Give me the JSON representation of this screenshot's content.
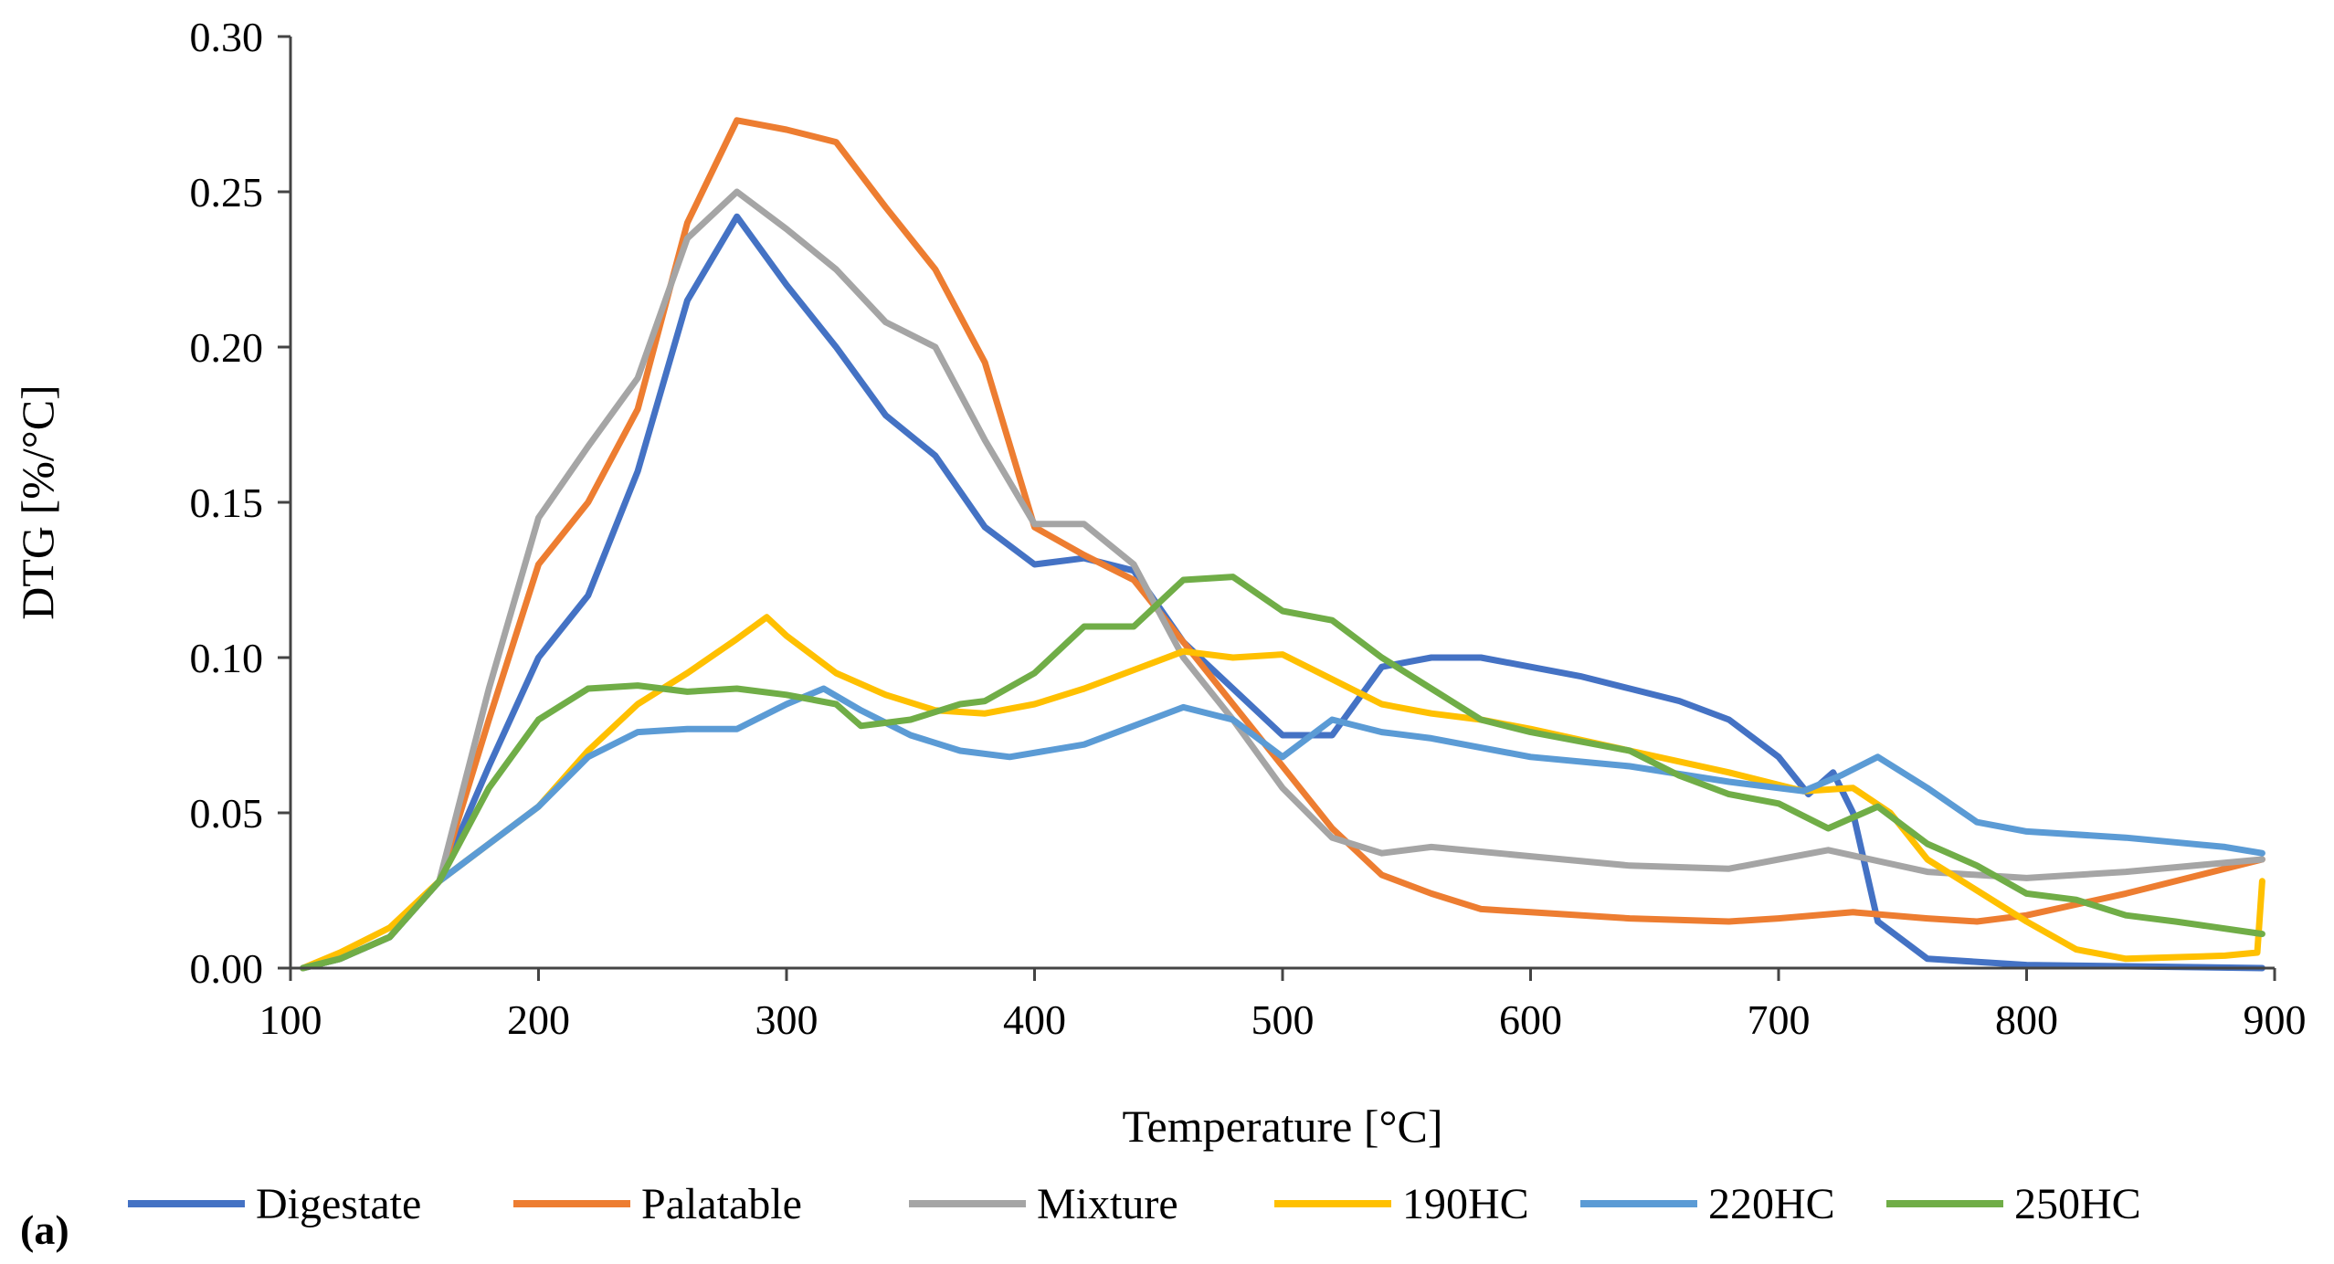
{
  "panel_label": "(a)",
  "chart_data": {
    "type": "line",
    "title": "",
    "xlabel": "Temperature [°C]",
    "ylabel": "DTG [%/°C]",
    "xlim": [
      100,
      900
    ],
    "ylim": [
      0,
      0.3
    ],
    "x_ticks": [
      100,
      200,
      300,
      400,
      500,
      600,
      700,
      800,
      900
    ],
    "y_ticks": [
      0.0,
      0.05,
      0.1,
      0.15,
      0.2,
      0.25,
      0.3
    ],
    "x_tick_labels": [
      "100",
      "200",
      "300",
      "400",
      "500",
      "600",
      "700",
      "800",
      "900"
    ],
    "y_tick_labels": [
      "0.00",
      "0.05",
      "0.10",
      "0.15",
      "0.20",
      "0.25",
      "0.30"
    ],
    "grid": false,
    "legend_position": "bottom",
    "series": [
      {
        "name": "Digestate",
        "color": "#4472c4",
        "points": [
          [
            105,
            0
          ],
          [
            120,
            0.003
          ],
          [
            140,
            0.01
          ],
          [
            160,
            0.028
          ],
          [
            180,
            0.065
          ],
          [
            200,
            0.1
          ],
          [
            220,
            0.12
          ],
          [
            240,
            0.16
          ],
          [
            260,
            0.215
          ],
          [
            280,
            0.242
          ],
          [
            300,
            0.22
          ],
          [
            320,
            0.2
          ],
          [
            340,
            0.178
          ],
          [
            360,
            0.165
          ],
          [
            380,
            0.142
          ],
          [
            400,
            0.13
          ],
          [
            420,
            0.132
          ],
          [
            440,
            0.128
          ],
          [
            460,
            0.105
          ],
          [
            480,
            0.09
          ],
          [
            500,
            0.075
          ],
          [
            520,
            0.075
          ],
          [
            540,
            0.097
          ],
          [
            560,
            0.1
          ],
          [
            580,
            0.1
          ],
          [
            600,
            0.097
          ],
          [
            620,
            0.094
          ],
          [
            640,
            0.09
          ],
          [
            660,
            0.086
          ],
          [
            680,
            0.08
          ],
          [
            700,
            0.068
          ],
          [
            712,
            0.056
          ],
          [
            722,
            0.063
          ],
          [
            730,
            0.05
          ],
          [
            740,
            0.015
          ],
          [
            760,
            0.003
          ],
          [
            800,
            0.001
          ],
          [
            895,
            0
          ]
        ]
      },
      {
        "name": "Palatable",
        "color": "#ed7d31",
        "points": [
          [
            105,
            0
          ],
          [
            120,
            0.003
          ],
          [
            140,
            0.01
          ],
          [
            160,
            0.028
          ],
          [
            180,
            0.08
          ],
          [
            200,
            0.13
          ],
          [
            220,
            0.15
          ],
          [
            240,
            0.18
          ],
          [
            260,
            0.24
          ],
          [
            280,
            0.273
          ],
          [
            300,
            0.27
          ],
          [
            320,
            0.266
          ],
          [
            340,
            0.245
          ],
          [
            360,
            0.225
          ],
          [
            380,
            0.195
          ],
          [
            400,
            0.142
          ],
          [
            420,
            0.133
          ],
          [
            440,
            0.125
          ],
          [
            460,
            0.105
          ],
          [
            480,
            0.085
          ],
          [
            500,
            0.065
          ],
          [
            520,
            0.045
          ],
          [
            540,
            0.03
          ],
          [
            560,
            0.024
          ],
          [
            580,
            0.019
          ],
          [
            600,
            0.018
          ],
          [
            640,
            0.016
          ],
          [
            680,
            0.015
          ],
          [
            700,
            0.016
          ],
          [
            730,
            0.018
          ],
          [
            760,
            0.016
          ],
          [
            780,
            0.015
          ],
          [
            800,
            0.017
          ],
          [
            840,
            0.024
          ],
          [
            895,
            0.035
          ]
        ]
      },
      {
        "name": "Mixture",
        "color": "#a5a5a5",
        "points": [
          [
            105,
            0
          ],
          [
            120,
            0.003
          ],
          [
            140,
            0.01
          ],
          [
            160,
            0.028
          ],
          [
            180,
            0.09
          ],
          [
            200,
            0.145
          ],
          [
            220,
            0.168
          ],
          [
            240,
            0.19
          ],
          [
            260,
            0.235
          ],
          [
            280,
            0.25
          ],
          [
            300,
            0.238
          ],
          [
            320,
            0.225
          ],
          [
            340,
            0.208
          ],
          [
            360,
            0.2
          ],
          [
            380,
            0.17
          ],
          [
            400,
            0.143
          ],
          [
            420,
            0.143
          ],
          [
            440,
            0.13
          ],
          [
            460,
            0.1
          ],
          [
            480,
            0.08
          ],
          [
            500,
            0.058
          ],
          [
            520,
            0.042
          ],
          [
            540,
            0.037
          ],
          [
            560,
            0.039
          ],
          [
            600,
            0.036
          ],
          [
            640,
            0.033
          ],
          [
            680,
            0.032
          ],
          [
            700,
            0.035
          ],
          [
            720,
            0.038
          ],
          [
            760,
            0.031
          ],
          [
            800,
            0.029
          ],
          [
            840,
            0.031
          ],
          [
            895,
            0.035
          ]
        ]
      },
      {
        "name": "190HC",
        "color": "#ffc000",
        "points": [
          [
            105,
            0
          ],
          [
            120,
            0.005
          ],
          [
            140,
            0.013
          ],
          [
            160,
            0.028
          ],
          [
            180,
            0.04
          ],
          [
            200,
            0.052
          ],
          [
            220,
            0.07
          ],
          [
            240,
            0.085
          ],
          [
            260,
            0.095
          ],
          [
            280,
            0.106
          ],
          [
            292,
            0.113
          ],
          [
            300,
            0.107
          ],
          [
            320,
            0.095
          ],
          [
            340,
            0.088
          ],
          [
            360,
            0.083
          ],
          [
            380,
            0.082
          ],
          [
            400,
            0.085
          ],
          [
            420,
            0.09
          ],
          [
            440,
            0.096
          ],
          [
            460,
            0.102
          ],
          [
            480,
            0.1
          ],
          [
            500,
            0.101
          ],
          [
            520,
            0.093
          ],
          [
            540,
            0.085
          ],
          [
            560,
            0.082
          ],
          [
            580,
            0.08
          ],
          [
            600,
            0.077
          ],
          [
            640,
            0.07
          ],
          [
            680,
            0.063
          ],
          [
            710,
            0.057
          ],
          [
            730,
            0.058
          ],
          [
            745,
            0.05
          ],
          [
            760,
            0.035
          ],
          [
            780,
            0.025
          ],
          [
            800,
            0.015
          ],
          [
            820,
            0.006
          ],
          [
            840,
            0.003
          ],
          [
            880,
            0.004
          ],
          [
            893,
            0.005
          ],
          [
            895,
            0.028
          ]
        ]
      },
      {
        "name": "220HC",
        "color": "#5b9bd5",
        "points": [
          [
            105,
            0
          ],
          [
            120,
            0.003
          ],
          [
            140,
            0.01
          ],
          [
            160,
            0.028
          ],
          [
            180,
            0.04
          ],
          [
            200,
            0.052
          ],
          [
            220,
            0.068
          ],
          [
            240,
            0.076
          ],
          [
            260,
            0.077
          ],
          [
            280,
            0.077
          ],
          [
            300,
            0.085
          ],
          [
            315,
            0.09
          ],
          [
            330,
            0.083
          ],
          [
            350,
            0.075
          ],
          [
            370,
            0.07
          ],
          [
            390,
            0.068
          ],
          [
            420,
            0.072
          ],
          [
            440,
            0.078
          ],
          [
            460,
            0.084
          ],
          [
            480,
            0.08
          ],
          [
            500,
            0.068
          ],
          [
            520,
            0.08
          ],
          [
            540,
            0.076
          ],
          [
            560,
            0.074
          ],
          [
            600,
            0.068
          ],
          [
            640,
            0.065
          ],
          [
            680,
            0.06
          ],
          [
            710,
            0.057
          ],
          [
            725,
            0.062
          ],
          [
            740,
            0.068
          ],
          [
            760,
            0.058
          ],
          [
            780,
            0.047
          ],
          [
            800,
            0.044
          ],
          [
            840,
            0.042
          ],
          [
            880,
            0.039
          ],
          [
            895,
            0.037
          ]
        ]
      },
      {
        "name": "250HC",
        "color": "#70ad47",
        "points": [
          [
            105,
            0
          ],
          [
            120,
            0.003
          ],
          [
            140,
            0.01
          ],
          [
            160,
            0.028
          ],
          [
            180,
            0.058
          ],
          [
            200,
            0.08
          ],
          [
            220,
            0.09
          ],
          [
            240,
            0.091
          ],
          [
            260,
            0.089
          ],
          [
            280,
            0.09
          ],
          [
            300,
            0.088
          ],
          [
            320,
            0.085
          ],
          [
            330,
            0.078
          ],
          [
            350,
            0.08
          ],
          [
            370,
            0.085
          ],
          [
            380,
            0.086
          ],
          [
            400,
            0.095
          ],
          [
            420,
            0.11
          ],
          [
            440,
            0.11
          ],
          [
            460,
            0.125
          ],
          [
            480,
            0.126
          ],
          [
            500,
            0.115
          ],
          [
            520,
            0.112
          ],
          [
            540,
            0.1
          ],
          [
            560,
            0.09
          ],
          [
            580,
            0.08
          ],
          [
            600,
            0.076
          ],
          [
            640,
            0.07
          ],
          [
            660,
            0.062
          ],
          [
            680,
            0.056
          ],
          [
            700,
            0.053
          ],
          [
            720,
            0.045
          ],
          [
            740,
            0.052
          ],
          [
            760,
            0.04
          ],
          [
            780,
            0.033
          ],
          [
            800,
            0.024
          ],
          [
            820,
            0.022
          ],
          [
            840,
            0.017
          ],
          [
            860,
            0.015
          ],
          [
            895,
            0.011
          ]
        ]
      }
    ]
  }
}
